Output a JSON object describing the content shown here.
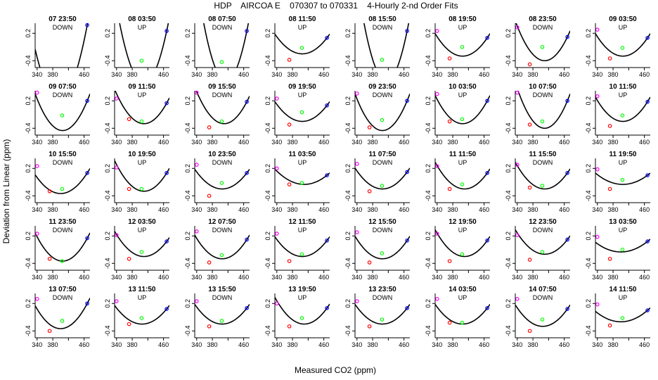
{
  "title": "HDP    AIRCOA E    070307 to 070331    4-Hourly 2-nd Order Fits",
  "xlabel": "Measured CO2 (ppm)",
  "ylabel": "Deviation from Linear (ppm)",
  "x_ticks": [
    "340",
    "380",
    "420",
    "460"
  ],
  "y_ticks": [
    "0.2",
    "-0.4"
  ],
  "colors": {
    "curve": "#000000",
    "low_std": "#ff00ff",
    "mid_low_std": "#ff0000",
    "mid_high_std": "#00ff00",
    "high_std": "#0000ff"
  },
  "chart_data": {
    "type": "scatter",
    "title": "HDP    AIRCOA E    070307 to 070331    4-Hourly 2-nd Order Fits",
    "xlabel": "Measured CO2 (ppm)",
    "ylabel": "Deviation from Linear (ppm)",
    "xlim": [
      335,
      475
    ],
    "ylim": [
      -0.55,
      0.42
    ],
    "grid": false,
    "standard_co2_x": [
      340,
      372,
      404,
      468
    ],
    "panels": [
      {
        "title": "07 23:50",
        "tag": "DOWN",
        "vertex": [
          395,
          -1.25
        ],
        "points": [
          null,
          null,
          null,
          0.38
        ]
      },
      {
        "title": "08 03:50",
        "tag": "UP",
        "vertex": [
          410,
          -0.9
        ],
        "points": [
          null,
          null,
          -0.4,
          0.25
        ]
      },
      {
        "title": "08 07:50",
        "tag": "DOWN",
        "vertex": [
          415,
          -0.85
        ],
        "points": [
          null,
          null,
          -0.43,
          0.25
        ]
      },
      {
        "title": "08 11:50",
        "tag": "UP",
        "vertex": [
          405,
          -0.25
        ],
        "points": [
          null,
          -0.38,
          -0.12,
          0.1
        ]
      },
      {
        "title": "08 15:50",
        "tag": "DOWN",
        "vertex": [
          415,
          -0.85
        ],
        "points": [
          null,
          null,
          -0.38,
          0.25
        ]
      },
      {
        "title": "08 19:50",
        "tag": "UP",
        "vertex": [
          405,
          -0.3
        ],
        "points": [
          0.25,
          -0.35,
          -0.1,
          0.1
        ]
      },
      {
        "title": "08 23:50",
        "tag": "DOWN",
        "vertex": [
          410,
          -0.4
        ],
        "points": [
          0.33,
          -0.48,
          -0.1,
          0.12
        ]
      },
      {
        "title": "09 03:50",
        "tag": "UP",
        "vertex": [
          405,
          -0.3
        ],
        "points": [
          0.28,
          -0.35,
          -0.12,
          0.1
        ]
      },
      {
        "title": "09 07:50",
        "tag": "DOWN",
        "vertex": [
          405,
          -0.45
        ],
        "points": [
          0.38,
          null,
          -0.12,
          0.2
        ]
      },
      {
        "title": "09 11:50",
        "tag": "UP",
        "vertex": [
          410,
          -0.3
        ],
        "points": [
          0.25,
          -0.2,
          -0.25,
          0.15
        ]
      },
      {
        "title": "09 15:50",
        "tag": "DOWN",
        "vertex": [
          410,
          -0.3
        ],
        "points": [
          0.38,
          -0.38,
          -0.25,
          0.18
        ]
      },
      {
        "title": "09 19:50",
        "tag": "UP",
        "vertex": [
          405,
          -0.25
        ],
        "points": [
          0.25,
          -0.32,
          -0.05,
          0.1
        ]
      },
      {
        "title": "09 23:50",
        "tag": "DOWN",
        "vertex": [
          405,
          -0.45
        ],
        "points": [
          0.36,
          -0.38,
          -0.22,
          0.2
        ]
      },
      {
        "title": "10 03:50",
        "tag": "UP",
        "vertex": [
          405,
          -0.3
        ],
        "points": [
          0.35,
          -0.25,
          -0.2,
          0.2
        ]
      },
      {
        "title": "10 07:50",
        "tag": "DOWN",
        "vertex": [
          410,
          -0.4
        ],
        "points": [
          0.38,
          -0.32,
          -0.25,
          0.2
        ]
      },
      {
        "title": "10 11:50",
        "tag": "UP",
        "vertex": [
          405,
          -0.25
        ],
        "points": [
          0.3,
          -0.35,
          -0.12,
          0.18
        ]
      },
      {
        "title": "10 15:50",
        "tag": "DOWN",
        "vertex": [
          400,
          -0.35
        ],
        "points": [
          0.25,
          -0.3,
          -0.25,
          0.1
        ]
      },
      {
        "title": "10 19:50",
        "tag": "UP",
        "vertex": [
          410,
          -0.3
        ],
        "points": [
          0.22,
          -0.25,
          -0.25,
          0.1
        ]
      },
      {
        "title": "10 23:50",
        "tag": "DOWN",
        "vertex": [
          405,
          -0.25
        ],
        "points": [
          0.28,
          -0.4,
          -0.12,
          0.1
        ]
      },
      {
        "title": "11 03:50",
        "tag": "UP",
        "vertex": [
          410,
          -0.15
        ],
        "points": [
          0.2,
          -0.15,
          -0.12,
          0.05
        ]
      },
      {
        "title": "11 07:50",
        "tag": "DOWN",
        "vertex": [
          405,
          -0.25
        ],
        "points": [
          0.3,
          -0.3,
          -0.18,
          0.12
        ]
      },
      {
        "title": "11 11:50",
        "tag": "UP",
        "vertex": [
          410,
          -0.25
        ],
        "points": [
          0.25,
          -0.25,
          -0.15,
          0.1
        ]
      },
      {
        "title": "11 15:50",
        "tag": "DOWN",
        "vertex": [
          410,
          -0.25
        ],
        "points": [
          0.28,
          -0.22,
          -0.18,
          0.1
        ]
      },
      {
        "title": "11 19:50",
        "tag": "UP",
        "vertex": [
          405,
          -0.15
        ],
        "points": [
          0.18,
          -0.25,
          -0.05,
          0.05
        ]
      },
      {
        "title": "11 23:50",
        "tag": "DOWN",
        "vertex": [
          405,
          -0.35
        ],
        "points": [
          0.25,
          -0.3,
          -0.35,
          0.15
        ]
      },
      {
        "title": "12 03:50",
        "tag": "UP",
        "vertex": [
          410,
          -0.25
        ],
        "points": [
          0.22,
          -0.3,
          -0.15,
          0.08
        ]
      },
      {
        "title": "12 07:50",
        "tag": "DOWN",
        "vertex": [
          405,
          -0.3
        ],
        "points": [
          0.3,
          -0.38,
          -0.22,
          0.12
        ]
      },
      {
        "title": "12 11:50",
        "tag": "UP",
        "vertex": [
          405,
          -0.25
        ],
        "points": [
          0.25,
          -0.35,
          -0.2,
          0.1
        ]
      },
      {
        "title": "12 15:50",
        "tag": "DOWN",
        "vertex": [
          405,
          -0.3
        ],
        "points": [
          0.28,
          -0.38,
          -0.18,
          0.1
        ]
      },
      {
        "title": "12 19:50",
        "tag": "UP",
        "vertex": [
          410,
          -0.25
        ],
        "points": [
          0.25,
          -0.35,
          -0.2,
          0.1
        ]
      },
      {
        "title": "12 23:50",
        "tag": "DOWN",
        "vertex": [
          410,
          -0.2
        ],
        "points": [
          0.22,
          -0.32,
          -0.15,
          0.12
        ]
      },
      {
        "title": "13 03:50",
        "tag": "UP",
        "vertex": [
          400,
          -0.15
        ],
        "points": [
          0.18,
          -0.3,
          -0.1,
          0.08
        ]
      },
      {
        "title": "13 07:50",
        "tag": "DOWN",
        "vertex": [
          400,
          -0.35
        ],
        "points": [
          0.3,
          -0.4,
          -0.18,
          0.2
        ]
      },
      {
        "title": "13 11:50",
        "tag": "UP",
        "vertex": [
          405,
          -0.25
        ],
        "points": [
          0.25,
          -0.25,
          -0.12,
          0.08
        ]
      },
      {
        "title": "13 15:50",
        "tag": "DOWN",
        "vertex": [
          405,
          -0.25
        ],
        "points": [
          0.25,
          -0.3,
          -0.18,
          0.1
        ]
      },
      {
        "title": "13 19:50",
        "tag": "UP",
        "vertex": [
          410,
          -0.25
        ],
        "points": [
          0.2,
          -0.3,
          -0.12,
          0.1
        ]
      },
      {
        "title": "13 23:50",
        "tag": "DOWN",
        "vertex": [
          405,
          -0.25
        ],
        "points": [
          0.25,
          -0.3,
          -0.15,
          0.1
        ]
      },
      {
        "title": "14 03:50",
        "tag": "UP",
        "vertex": [
          405,
          -0.25
        ],
        "points": [
          0.3,
          -0.22,
          -0.22,
          0.1
        ]
      },
      {
        "title": "14 07:50",
        "tag": "DOWN",
        "vertex": [
          405,
          -0.3
        ],
        "points": [
          0.3,
          -0.4,
          -0.15,
          0.08
        ]
      },
      {
        "title": "14 11:50",
        "tag": "UP",
        "vertex": [
          400,
          -0.2
        ],
        "points": [
          0.18,
          -0.28,
          -0.12,
          0.05
        ]
      }
    ]
  }
}
